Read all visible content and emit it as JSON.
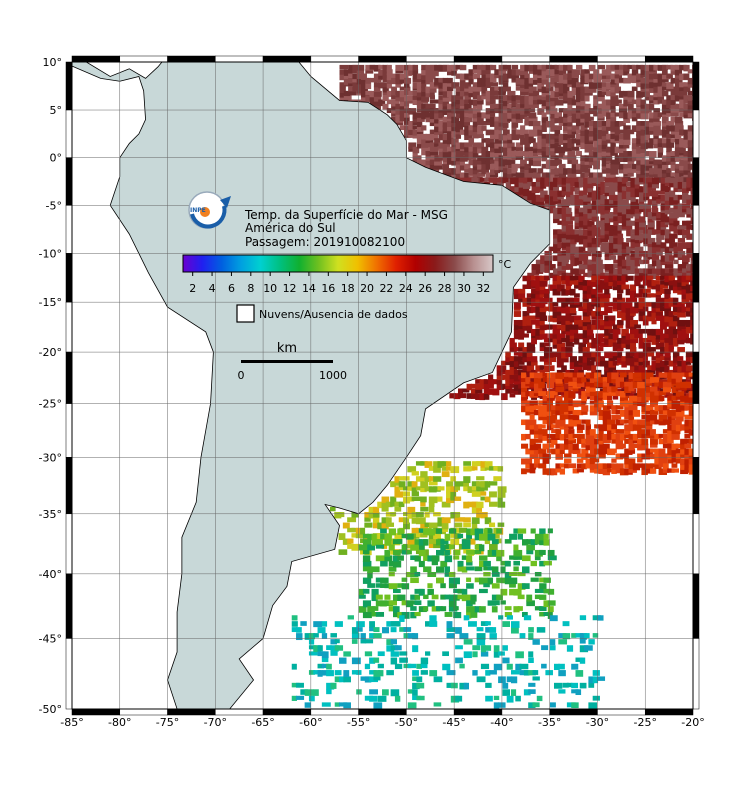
{
  "title": {
    "lines": [
      "Temp. da Superfície do Mar - MSG",
      "América do Sul",
      "Passagem: 201910082100"
    ]
  },
  "map": {
    "xlim": [
      -85,
      -20
    ],
    "ylim": [
      -50,
      10
    ],
    "xticks": [
      {
        "value": -85,
        "label": "-85°"
      },
      {
        "value": -80,
        "label": "-80°"
      },
      {
        "value": -75,
        "label": "-75°"
      },
      {
        "value": -70,
        "label": "-70°"
      },
      {
        "value": -65,
        "label": "-65°"
      },
      {
        "value": -60,
        "label": "-60°"
      },
      {
        "value": -55,
        "label": "-55°"
      },
      {
        "value": -50,
        "label": "-50°"
      },
      {
        "value": -45,
        "label": "-45°"
      },
      {
        "value": -40,
        "label": "-40°"
      },
      {
        "value": -35,
        "label": "-35°"
      },
      {
        "value": -30,
        "label": "-30°"
      },
      {
        "value": -25,
        "label": "-25°"
      },
      {
        "value": -20,
        "label": "-20°"
      }
    ],
    "yticks": [
      {
        "value": 10,
        "label": "10°"
      },
      {
        "value": 5,
        "label": "5°"
      },
      {
        "value": 0,
        "label": "0°"
      },
      {
        "value": -5,
        "label": "-5°"
      },
      {
        "value": -10,
        "label": "-10°"
      },
      {
        "value": -15,
        "label": "-15°"
      },
      {
        "value": -20,
        "label": "-20°"
      },
      {
        "value": -25,
        "label": "-25°"
      },
      {
        "value": -30,
        "label": "-30°"
      },
      {
        "value": -35,
        "label": "-35°"
      },
      {
        "value": -40,
        "label": "-40°"
      },
      {
        "value": -45,
        "label": "-45°"
      },
      {
        "value": -50,
        "label": "-50°"
      }
    ]
  },
  "colorbar": {
    "unit": "°C",
    "clim": [
      1,
      33
    ],
    "ticks": [
      2,
      4,
      6,
      8,
      10,
      12,
      14,
      16,
      18,
      20,
      22,
      24,
      26,
      28,
      30,
      32
    ],
    "colors": [
      "#6a00d0",
      "#2020f0",
      "#0060e0",
      "#00a0e0",
      "#00d0d0",
      "#00c080",
      "#10b030",
      "#70c020",
      "#d0e020",
      "#f0c000",
      "#f07000",
      "#e02000",
      "#b00000",
      "#8a1a1a",
      "#8a4a4a",
      "#b89090",
      "#d8c8c8"
    ]
  },
  "legend": {
    "label": "Nuvens/Ausencia de dados"
  },
  "scale_bar": {
    "unit": "km",
    "ticks": [
      "0",
      "1000"
    ]
  }
}
